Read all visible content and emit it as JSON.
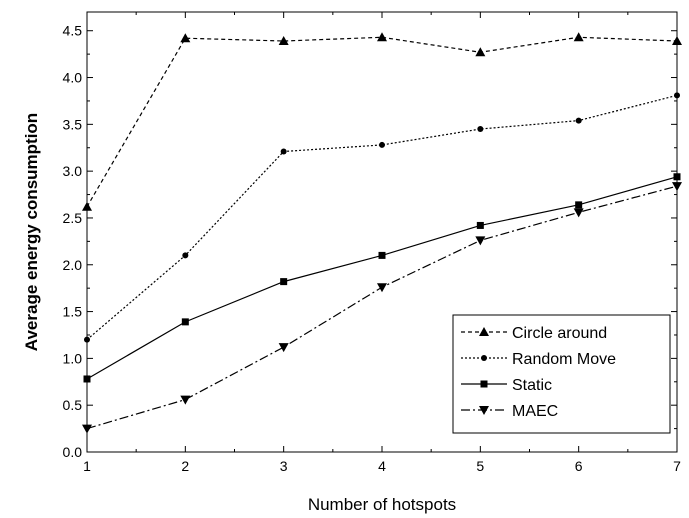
{
  "chart_data": {
    "type": "line",
    "title": "",
    "xlabel": "Number of hotspots",
    "ylabel": "Average energy consumption",
    "x": [
      1,
      2,
      3,
      4,
      5,
      6,
      7
    ],
    "xlim": [
      1,
      7
    ],
    "ylim": [
      0.0,
      4.7
    ],
    "x_ticks": [
      "1",
      "2",
      "3",
      "4",
      "5",
      "6",
      "7"
    ],
    "y_ticks": [
      "0.0",
      "0.5",
      "1.0",
      "1.5",
      "2.0",
      "2.5",
      "3.0",
      "3.5",
      "4.0",
      "4.5"
    ],
    "grid": false,
    "legend_position": "bottom-right",
    "series": [
      {
        "name": "Circle around",
        "marker": "triangle-up",
        "line": "short-dash",
        "values": [
          2.62,
          4.42,
          4.39,
          4.43,
          4.27,
          4.43,
          4.39
        ]
      },
      {
        "name": "Random Move",
        "marker": "circle",
        "line": "dot",
        "values": [
          1.2,
          2.1,
          3.21,
          3.28,
          3.45,
          3.54,
          3.81
        ]
      },
      {
        "name": "Static",
        "marker": "square",
        "line": "solid",
        "values": [
          0.78,
          1.39,
          1.82,
          2.1,
          2.42,
          2.64,
          2.94
        ]
      },
      {
        "name": "MAEC",
        "marker": "triangle-down",
        "line": "dash-dot",
        "values": [
          0.25,
          0.56,
          1.12,
          1.76,
          2.26,
          2.56,
          2.84
        ]
      }
    ]
  }
}
